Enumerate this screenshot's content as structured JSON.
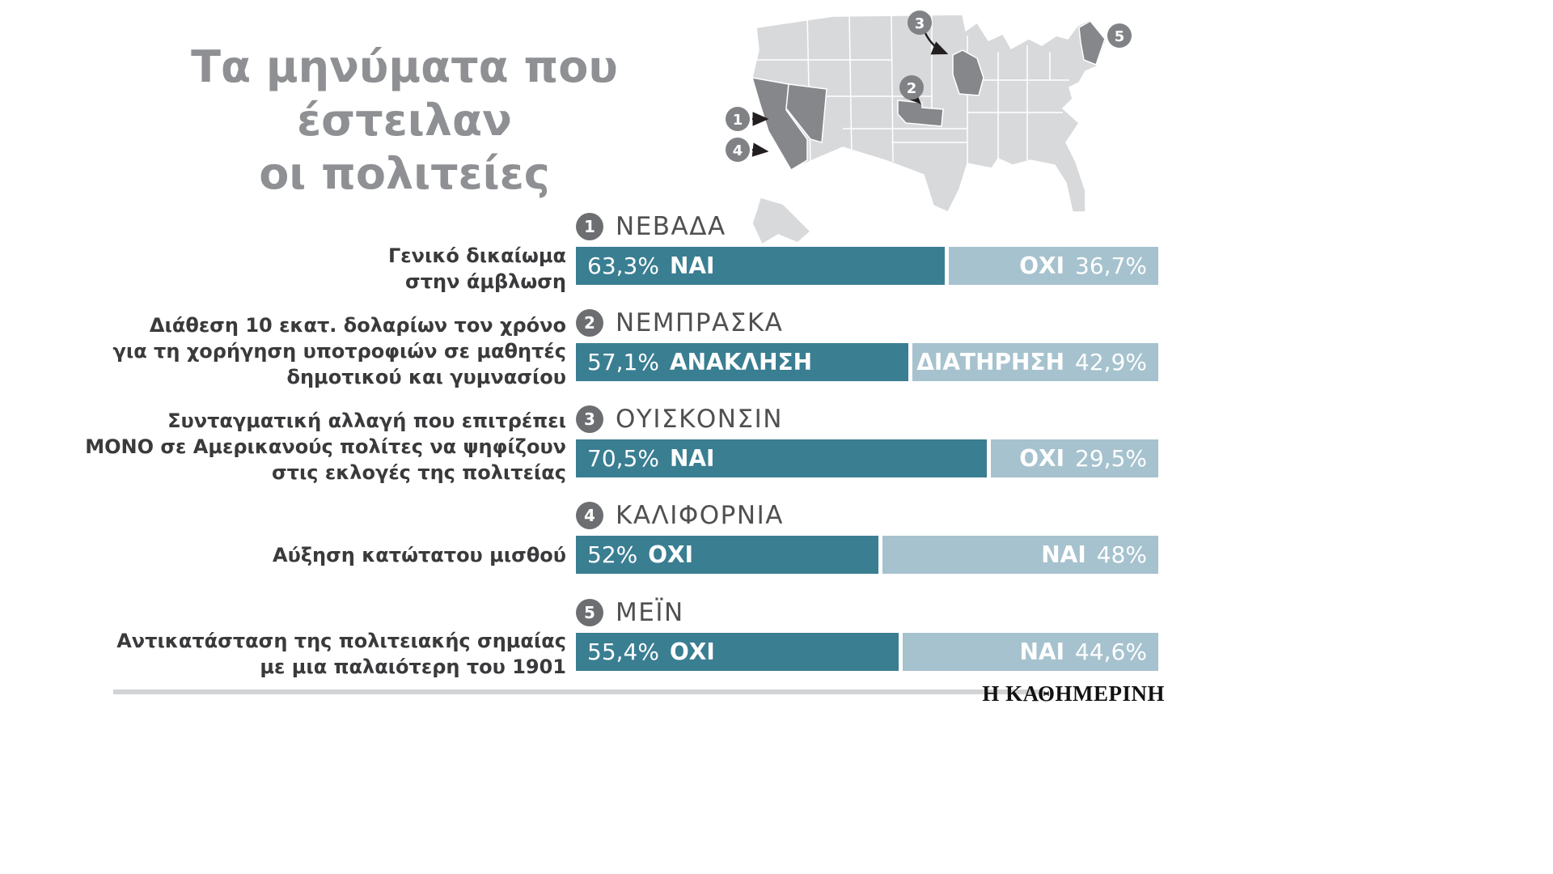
{
  "title": {
    "line1": "Τα μηνύματα που έστειλαν",
    "line2": "οι πολιτείες"
  },
  "brand": "Η ΚΑΘΗΜΕΡΙΝΗ",
  "colors": {
    "bar_primary": "#3a7e92",
    "bar_secondary": "#a6c2ce",
    "map_base": "#d8d9db",
    "map_highlight": "#85878a",
    "badge": "#808285",
    "title_gray": "#8e9093"
  },
  "map": {
    "badges": [
      {
        "n": "1"
      },
      {
        "n": "2"
      },
      {
        "n": "3"
      },
      {
        "n": "4"
      },
      {
        "n": "5"
      }
    ],
    "highlighted_states": [
      "california",
      "nevada",
      "nebraska",
      "wisconsin",
      "maine"
    ]
  },
  "chart_data": {
    "type": "bar",
    "orientation": "horizontal",
    "stacked": true,
    "unit": "%",
    "xlim": [
      0,
      100
    ],
    "title": "Τα μηνύματα που έστειλαν οι πολιτείες",
    "rows": [
      {
        "number": "1",
        "state": "ΝΕΒΑΔΑ",
        "description": "Γενικό δικαίωμα\nστην άμβλωση",
        "left": {
          "value": 63.3,
          "label": "63,3%",
          "vote": "ΝΑΙ"
        },
        "right": {
          "value": 36.7,
          "label": "36,7%",
          "vote": "ΟΧΙ"
        }
      },
      {
        "number": "2",
        "state": "ΝΕΜΠΡΑΣΚΑ",
        "description": "Διάθεση 10 εκατ. δολαρίων τον χρόνο\nγια τη χορήγηση υποτροφιών σε μαθητές\nδημοτικού και γυμνασίου",
        "left": {
          "value": 57.1,
          "label": "57,1%",
          "vote": "ΑΝΑΚΛΗΣΗ"
        },
        "right": {
          "value": 42.9,
          "label": "42,9%",
          "vote": "ΔΙΑΤΗΡΗΣΗ"
        }
      },
      {
        "number": "3",
        "state": "ΟΥΙΣΚΟΝΣΙΝ",
        "description": "Συνταγματική αλλαγή που επιτρέπει\nΜΟΝΟ σε Αμερικανούς πολίτες να ψηφίζουν\nστις εκλογές της πολιτείας",
        "left": {
          "value": 70.5,
          "label": "70,5%",
          "vote": "ΝΑΙ"
        },
        "right": {
          "value": 29.5,
          "label": "29,5%",
          "vote": "ΟΧΙ"
        }
      },
      {
        "number": "4",
        "state": "ΚΑΛΙΦΟΡΝΙΑ",
        "description": "Αύξηση κατώτατου μισθού",
        "left": {
          "value": 52,
          "label": "52%",
          "vote": "ΟΧΙ"
        },
        "right": {
          "value": 48,
          "label": "48%",
          "vote": "ΝΑΙ"
        }
      },
      {
        "number": "5",
        "state": "ΜΕΪΝ",
        "description": "Αντικατάσταση της πολιτειακής σημαίας\nμε μια παλαιότερη του 1901",
        "left": {
          "value": 55.4,
          "label": "55,4%",
          "vote": "ΟΧΙ"
        },
        "right": {
          "value": 44.6,
          "label": "44,6%",
          "vote": "ΝΑΙ"
        }
      }
    ]
  }
}
